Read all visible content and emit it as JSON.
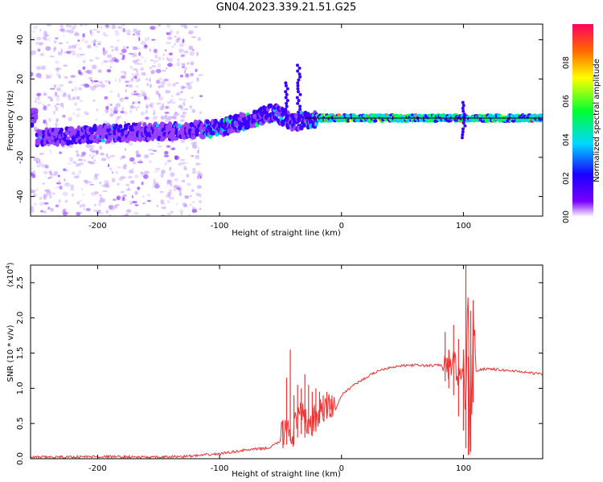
{
  "title": "GN04.2023.339.21.51.G25",
  "chart_data": [
    {
      "type": "heatmap",
      "xlabel": "Height of straight line (km)",
      "ylabel": "Frequency (Hz)",
      "xlim": [
        -255,
        165
      ],
      "ylim": [
        -50,
        48
      ],
      "xticks": [
        -200,
        -100,
        0,
        100
      ],
      "yticks": [
        -40,
        -20,
        0,
        20,
        40
      ],
      "colorbar": {
        "label": "Normalized spectral amplitude",
        "range": [
          0.0,
          1.0
        ],
        "ticks": [
          0.0,
          0.2,
          0.4,
          0.6,
          0.8
        ],
        "colormap": "rainbow (violet to red)"
      },
      "ridge": {
        "description_points": [
          {
            "x": -250,
            "y": -10
          },
          {
            "x": -200,
            "y": -8
          },
          {
            "x": -150,
            "y": -7
          },
          {
            "x": -100,
            "y": -5
          },
          {
            "x": -70,
            "y": 0
          },
          {
            "x": -55,
            "y": 3
          },
          {
            "x": -40,
            "y": -2
          },
          {
            "x": -20,
            "y": 0
          },
          {
            "x": 0,
            "y": 0
          },
          {
            "x": 50,
            "y": 0
          },
          {
            "x": 100,
            "y": 0
          },
          {
            "x": 165,
            "y": 0
          }
        ],
        "reference_line_y": 0
      }
    },
    {
      "type": "line",
      "xlabel": "Height of straight line (km)",
      "ylabel": "SNR (10 * v/v)",
      "y_multiplier": "(x10",
      "y_multiplier_exp": "4",
      "y_multiplier_close": ")",
      "xlim": [
        -255,
        165
      ],
      "ylim": [
        0,
        2.75
      ],
      "xticks": [
        -200,
        -100,
        0,
        100
      ],
      "yticks": [
        0.0,
        0.5,
        1.0,
        1.5,
        2.0,
        2.5
      ],
      "color": "#ee3333",
      "series": [
        {
          "x": [
            -255,
            -200,
            -150,
            -120,
            -100,
            -80,
            -60,
            -50,
            -45,
            -40,
            -35,
            -30,
            -25,
            -20,
            -15,
            -10,
            -5,
            0,
            10,
            20,
            30,
            40,
            50,
            60,
            70,
            80,
            85,
            90,
            95,
            98,
            100,
            102,
            104,
            105,
            106,
            107,
            108,
            110,
            115,
            120,
            130,
            140,
            150,
            165
          ],
          "y": [
            0.02,
            0.03,
            0.02,
            0.04,
            0.07,
            0.12,
            0.15,
            0.25,
            0.5,
            0.35,
            0.6,
            0.55,
            0.5,
            0.6,
            0.65,
            0.75,
            0.7,
            0.9,
            1.05,
            1.15,
            1.25,
            1.3,
            1.32,
            1.33,
            1.32,
            1.33,
            1.3,
            1.35,
            1.3,
            1.0,
            1.35,
            0.7,
            2.7,
            0.2,
            1.5,
            0.4,
            2.2,
            1.25,
            1.27,
            1.28,
            1.26,
            1.25,
            1.23,
            1.2
          ]
        }
      ],
      "spikes": {
        "x": [
          -48,
          -45,
          -42,
          -39,
          -36,
          -33,
          -30,
          -27,
          -24,
          -21,
          -18,
          -15,
          -12,
          -9,
          85,
          88,
          92,
          96,
          100,
          102,
          104,
          106,
          108
        ],
        "y_top": [
          0.55,
          1.15,
          1.55,
          0.9,
          1.05,
          1.0,
          1.2,
          1.05,
          0.95,
          1.0,
          0.95,
          0.9,
          0.95,
          0.85,
          1.8,
          1.55,
          1.9,
          1.7,
          1.55,
          2.75,
          1.45,
          2.1,
          2.25
        ],
        "y_bottom": [
          0.15,
          0.2,
          0.25,
          0.2,
          0.3,
          0.35,
          0.3,
          0.35,
          0.4,
          0.45,
          0.5,
          0.6,
          0.6,
          0.7,
          1.1,
          1.0,
          0.9,
          0.6,
          0.4,
          0.15,
          0.05,
          0.1,
          0.8
        ]
      }
    }
  ]
}
